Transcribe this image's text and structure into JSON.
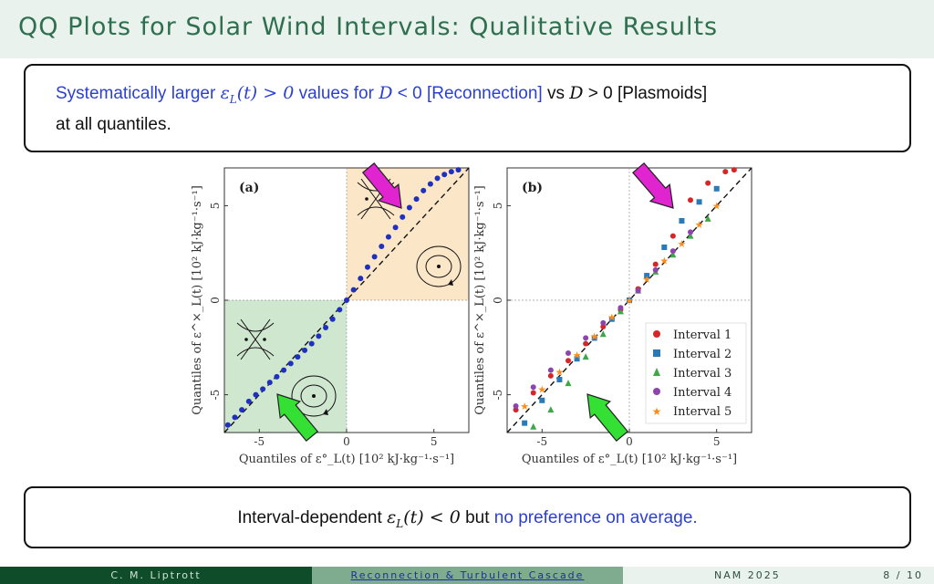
{
  "header": {
    "title": "QQ Plots for Solar Wind Intervals: Qualitative Results"
  },
  "box1": {
    "p1": "Systematically larger ",
    "m1": "ε",
    "m1sub": "L",
    "m1arg": "(t) > 0",
    "p2": " values for ",
    "m2": "D",
    "p3": " < 0 [Reconnection]",
    "p4": " vs ",
    "m3": "D",
    "p5": " > 0 [Plasmoids]",
    "p6": "at all quantiles."
  },
  "box2": {
    "p1": "Interval-dependent ",
    "m1": "ε",
    "m1sub": "L",
    "m1arg": "(t) < 0",
    "p2": " but ",
    "p3": "no preference on average."
  },
  "footer": {
    "author": "C. M. Liptrott",
    "title": "Reconnection & Turbulent Cascade",
    "venue": "NAM 2025",
    "page": "8 / 10"
  },
  "colors": {
    "accent_title": "#2f6f4f",
    "highlight_blue": "#2b3fd6",
    "quadrant_orange": "#fbe6c8",
    "quadrant_green": "#cfe7cf",
    "arrow_magenta": "#e024d0",
    "arrow_green": "#33e033"
  },
  "chart_data": [
    {
      "type": "scatter",
      "panel_label": "(a)",
      "xlabel": "Quantiles of ε°_L(t) [10² kJ·kg⁻¹·s⁻¹]",
      "ylabel": "Quantiles of ε^×_L(t) [10² kJ·kg⁻¹·s⁻¹]",
      "xlim": [
        -7,
        7
      ],
      "ylim": [
        -7,
        7
      ],
      "xticks": [
        "-5",
        "0",
        "5"
      ],
      "yticks": [
        "5",
        "0",
        "-5"
      ],
      "reference_line": "y = x (dashed)",
      "grid": false,
      "shaded_quadrants": [
        "upper-right: orange",
        "lower-left: green"
      ],
      "series": [
        {
          "color": "#1f2fbf",
          "x": [
            -6.8,
            -6.4,
            -6.0,
            -5.6,
            -5.2,
            -4.8,
            -4.4,
            -4.0,
            -3.6,
            -3.2,
            -2.8,
            -2.4,
            -2.0,
            -1.6,
            -1.2,
            -0.8,
            -0.4,
            0,
            0.4,
            0.8,
            1.2,
            1.6,
            2.0,
            2.4,
            2.8,
            3.2,
            3.6,
            4.0,
            4.4,
            4.8,
            5.2,
            5.6,
            6.0,
            6.4
          ],
          "y": [
            -6.6,
            -6.2,
            -5.8,
            -5.35,
            -5.0,
            -4.7,
            -4.35,
            -4.05,
            -3.7,
            -3.35,
            -3.0,
            -2.65,
            -2.3,
            -1.9,
            -1.45,
            -1.0,
            -0.5,
            0,
            0.55,
            1.15,
            1.75,
            2.3,
            2.85,
            3.35,
            3.85,
            4.4,
            4.9,
            5.35,
            5.8,
            6.15,
            6.45,
            6.65,
            6.8,
            6.9
          ]
        }
      ]
    },
    {
      "type": "scatter",
      "panel_label": "(b)",
      "xlabel": "Quantiles of ε°_L(t) [10² kJ·kg⁻¹·s⁻¹]",
      "ylabel": "Quantiles of ε^×_L(t) [10² kJ·kg⁻¹·s⁻¹]",
      "xlim": [
        -7,
        7
      ],
      "ylim": [
        -7,
        7
      ],
      "xticks": [
        "-5",
        "0",
        "5"
      ],
      "yticks": [
        "5",
        "0",
        "-5"
      ],
      "reference_line": "y = x (dashed)",
      "grid": false,
      "legend": "lower-right",
      "series": [
        {
          "name": "Interval 1",
          "marker": "circle",
          "color": "#d62728",
          "x": [
            -6.5,
            -5.5,
            -4.5,
            -3.5,
            -2.5,
            -1.5,
            -0.5,
            0.5,
            1.5,
            2.5,
            3.5,
            4.5,
            5.5,
            6.0
          ],
          "y": [
            -5.8,
            -4.9,
            -4.0,
            -3.2,
            -2.3,
            -1.4,
            -0.5,
            0.6,
            1.9,
            3.4,
            5.3,
            6.2,
            6.8,
            6.9
          ]
        },
        {
          "name": "Interval 2",
          "marker": "square",
          "color": "#2a7ab8",
          "x": [
            -6.0,
            -5.0,
            -4.0,
            -3.0,
            -2.0,
            -1.0,
            0,
            1.0,
            2.0,
            3.0,
            4.0,
            5.0
          ],
          "y": [
            -6.5,
            -5.3,
            -4.2,
            -3.1,
            -2.0,
            -1.0,
            0,
            1.3,
            2.8,
            4.2,
            5.2,
            5.9
          ]
        },
        {
          "name": "Interval 3",
          "marker": "triangle",
          "color": "#3fa64a",
          "x": [
            -5.5,
            -4.5,
            -3.5,
            -2.5,
            -1.5,
            -0.5,
            0.5,
            1.5,
            2.5,
            3.5,
            4.5
          ],
          "y": [
            -6.7,
            -5.8,
            -4.4,
            -3.0,
            -1.8,
            -0.6,
            0.5,
            1.5,
            2.4,
            3.4,
            4.3
          ]
        },
        {
          "name": "Interval 4",
          "marker": "circle",
          "color": "#8e44ad",
          "x": [
            -6.5,
            -5.5,
            -4.5,
            -3.5,
            -2.5,
            -1.5,
            -0.5,
            0.5,
            1.5,
            2.5,
            3.5
          ],
          "y": [
            -5.6,
            -4.6,
            -3.7,
            -2.8,
            -2.0,
            -1.2,
            -0.4,
            0.5,
            1.6,
            2.6,
            3.6
          ]
        },
        {
          "name": "Interval 5",
          "marker": "star",
          "color": "#ff8c1a",
          "x": [
            -6.0,
            -5.0,
            -4.0,
            -3.0,
            -2.0,
            -1.0,
            0,
            1.0,
            2.0,
            3.0,
            4.0,
            5.0
          ],
          "y": [
            -5.6,
            -4.7,
            -3.8,
            -2.9,
            -1.9,
            -0.9,
            0,
            1.1,
            2.1,
            3.0,
            4.0,
            5.0
          ]
        }
      ]
    }
  ]
}
